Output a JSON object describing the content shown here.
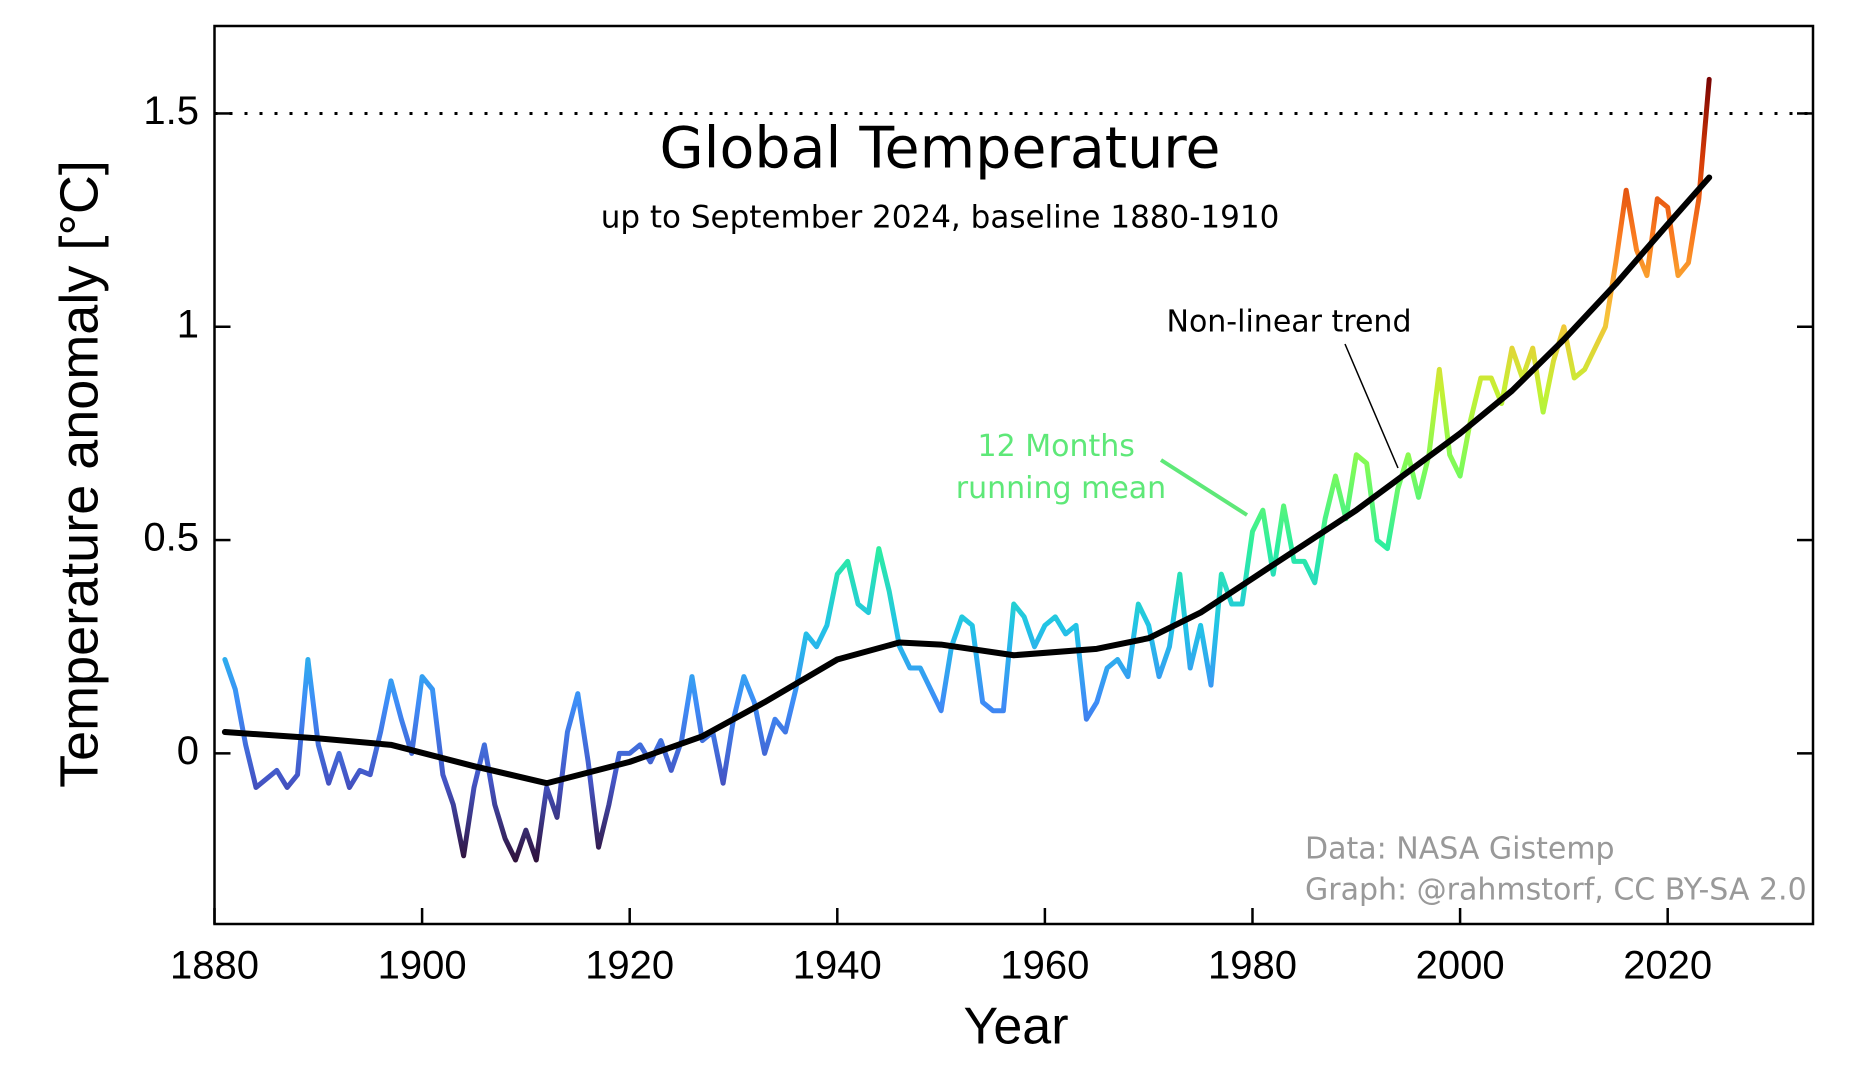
{
  "chart_data": {
    "type": "line",
    "title": "Global Temperature",
    "subtitle": "up to September 2024, baseline 1880-1910",
    "xlabel": "Year",
    "ylabel": "Temperature anomaly [°C]",
    "xlim": [
      1880,
      2034
    ],
    "ylim": [
      -0.4,
      1.705
    ],
    "xticks": [
      1880,
      1900,
      1920,
      1940,
      1960,
      1980,
      2000,
      2020
    ],
    "yticks": [
      0,
      0.5,
      1,
      1.5
    ],
    "reference_line": 1.5,
    "colormap": [
      "#30123b",
      "#4454c4",
      "#3e8cf7",
      "#22c4e6",
      "#2beea0",
      "#7cfb58",
      "#c4f133",
      "#f8c03a",
      "#fa7a1f",
      "#d53a06",
      "#7a0403"
    ],
    "series": [
      {
        "name": "12 Months running mean",
        "x": [
          1881,
          1882,
          1883,
          1884,
          1885,
          1886,
          1887,
          1888,
          1889,
          1890,
          1891,
          1892,
          1893,
          1894,
          1895,
          1896,
          1897,
          1898,
          1899,
          1900,
          1901,
          1902,
          1903,
          1904,
          1905,
          1906,
          1907,
          1908,
          1909,
          1910,
          1911,
          1912,
          1913,
          1914,
          1915,
          1916,
          1917,
          1918,
          1919,
          1920,
          1921,
          1922,
          1923,
          1924,
          1925,
          1926,
          1927,
          1928,
          1929,
          1930,
          1931,
          1932,
          1933,
          1934,
          1935,
          1936,
          1937,
          1938,
          1939,
          1940,
          1941,
          1942,
          1943,
          1944,
          1945,
          1946,
          1947,
          1948,
          1949,
          1950,
          1951,
          1952,
          1953,
          1954,
          1955,
          1956,
          1957,
          1958,
          1959,
          1960,
          1961,
          1962,
          1963,
          1964,
          1965,
          1966,
          1967,
          1968,
          1969,
          1970,
          1971,
          1972,
          1973,
          1974,
          1975,
          1976,
          1977,
          1978,
          1979,
          1980,
          1981,
          1982,
          1983,
          1984,
          1985,
          1986,
          1987,
          1988,
          1989,
          1990,
          1991,
          1992,
          1993,
          1994,
          1995,
          1996,
          1997,
          1998,
          1999,
          2000,
          2001,
          2002,
          2003,
          2004,
          2005,
          2006,
          2007,
          2008,
          2009,
          2010,
          2011,
          2012,
          2013,
          2014,
          2015,
          2016,
          2017,
          2018,
          2019,
          2020,
          2021,
          2022,
          2023,
          2024
        ],
        "values": [
          0.22,
          0.15,
          0.02,
          -0.08,
          -0.06,
          -0.04,
          -0.08,
          -0.05,
          0.22,
          0.02,
          -0.07,
          0.0,
          -0.08,
          -0.04,
          -0.05,
          0.05,
          0.17,
          0.08,
          0.0,
          0.18,
          0.15,
          -0.05,
          -0.12,
          -0.24,
          -0.08,
          0.02,
          -0.12,
          -0.2,
          -0.25,
          -0.18,
          -0.25,
          -0.08,
          -0.15,
          0.05,
          0.14,
          -0.02,
          -0.22,
          -0.12,
          0.0,
          0.0,
          0.02,
          -0.02,
          0.03,
          -0.04,
          0.03,
          0.18,
          0.03,
          0.05,
          -0.07,
          0.08,
          0.18,
          0.12,
          0.0,
          0.08,
          0.05,
          0.15,
          0.28,
          0.25,
          0.3,
          0.42,
          0.45,
          0.35,
          0.33,
          0.48,
          0.38,
          0.25,
          0.2,
          0.2,
          0.15,
          0.1,
          0.25,
          0.32,
          0.3,
          0.12,
          0.1,
          0.1,
          0.35,
          0.32,
          0.25,
          0.3,
          0.32,
          0.28,
          0.3,
          0.08,
          0.12,
          0.2,
          0.22,
          0.18,
          0.35,
          0.3,
          0.18,
          0.25,
          0.42,
          0.2,
          0.3,
          0.16,
          0.42,
          0.35,
          0.35,
          0.52,
          0.57,
          0.42,
          0.58,
          0.45,
          0.45,
          0.4,
          0.55,
          0.65,
          0.55,
          0.7,
          0.68,
          0.5,
          0.48,
          0.62,
          0.7,
          0.6,
          0.7,
          0.9,
          0.7,
          0.65,
          0.78,
          0.88,
          0.88,
          0.82,
          0.95,
          0.88,
          0.95,
          0.8,
          0.92,
          1.0,
          0.88,
          0.9,
          0.95,
          1.0,
          1.15,
          1.32,
          1.18,
          1.12,
          1.3,
          1.28,
          1.12,
          1.15,
          1.3,
          1.58
        ]
      },
      {
        "name": "Non-linear trend",
        "color": "#000000",
        "x": [
          1881,
          1890,
          1897,
          1905,
          1912,
          1920,
          1927,
          1933,
          1940,
          1946,
          1950,
          1957,
          1965,
          1970,
          1975,
          1980,
          1985,
          1990,
          1995,
          2000,
          2005,
          2010,
          2015,
          2020,
          2024
        ],
        "values": [
          0.05,
          0.035,
          0.02,
          -0.03,
          -0.07,
          -0.02,
          0.04,
          0.12,
          0.22,
          0.26,
          0.255,
          0.23,
          0.245,
          0.27,
          0.33,
          0.41,
          0.49,
          0.57,
          0.66,
          0.75,
          0.85,
          0.97,
          1.1,
          1.24,
          1.35
        ]
      }
    ],
    "credits": [
      "Data: NASA Gistemp",
      "Graph: @rahmstorf, CC BY-SA 2.0"
    ]
  }
}
